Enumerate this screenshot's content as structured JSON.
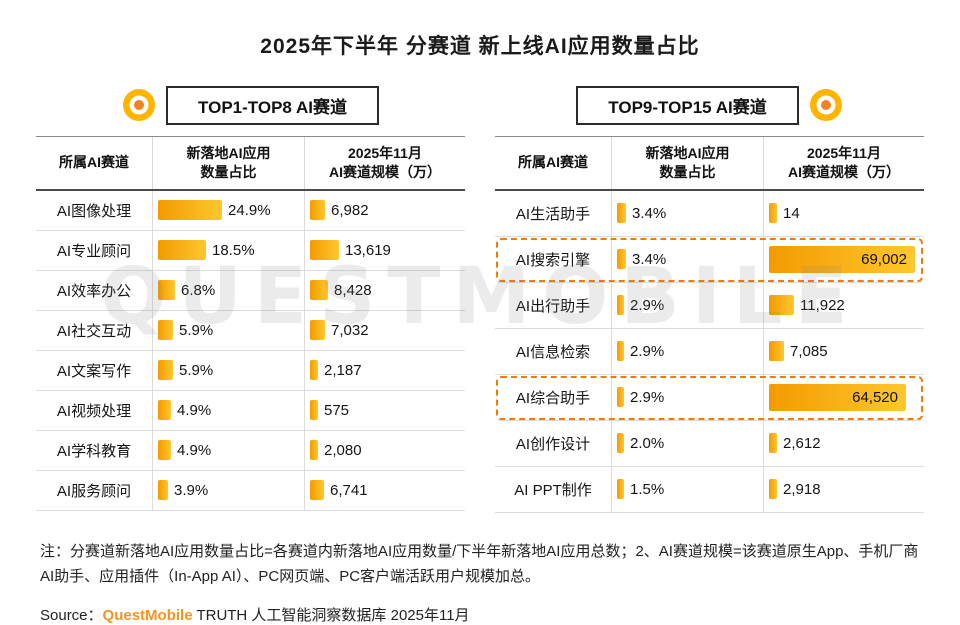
{
  "title": "2025年下半年 分赛道 新上线AI应用数量占比",
  "watermark": "QUESTMOBILE",
  "panels": [
    {
      "header": "TOP1-TOP8 AI赛道",
      "columns": [
        [
          "所属AI赛道"
        ],
        [
          "新落地AI应用",
          "数量占比"
        ],
        [
          "2025年11月",
          "AI赛道规模（万）"
        ]
      ],
      "rows": [
        {
          "track": "AI图像处理",
          "pct": "24.9%",
          "pct_value": 24.9,
          "scale": "6,982",
          "scale_value": 6982,
          "highlight": false
        },
        {
          "track": "AI专业顾问",
          "pct": "18.5%",
          "pct_value": 18.5,
          "scale": "13,619",
          "scale_value": 13619,
          "highlight": false
        },
        {
          "track": "AI效率办公",
          "pct": "6.8%",
          "pct_value": 6.8,
          "scale": "8,428",
          "scale_value": 8428,
          "highlight": false
        },
        {
          "track": "AI社交互动",
          "pct": "5.9%",
          "pct_value": 5.9,
          "scale": "7,032",
          "scale_value": 7032,
          "highlight": false
        },
        {
          "track": "AI文案写作",
          "pct": "5.9%",
          "pct_value": 5.9,
          "scale": "2,187",
          "scale_value": 2187,
          "highlight": false
        },
        {
          "track": "AI视频处理",
          "pct": "4.9%",
          "pct_value": 4.9,
          "scale": "575",
          "scale_value": 575,
          "highlight": false
        },
        {
          "track": "AI学科教育",
          "pct": "4.9%",
          "pct_value": 4.9,
          "scale": "2,080",
          "scale_value": 2080,
          "highlight": false
        },
        {
          "track": "AI服务顾问",
          "pct": "3.9%",
          "pct_value": 3.9,
          "scale": "6,741",
          "scale_value": 6741,
          "highlight": false
        }
      ]
    },
    {
      "header": "TOP9-TOP15 AI赛道",
      "columns": [
        [
          "所属AI赛道"
        ],
        [
          "新落地AI应用",
          "数量占比"
        ],
        [
          "2025年11月",
          "AI赛道规模（万）"
        ]
      ],
      "rows": [
        {
          "track": "AI生活助手",
          "pct": "3.4%",
          "pct_value": 3.4,
          "scale": "14",
          "scale_value": 14,
          "highlight": false
        },
        {
          "track": "AI搜索引擎",
          "pct": "3.4%",
          "pct_value": 3.4,
          "scale": "69,002",
          "scale_value": 69002,
          "highlight": true
        },
        {
          "track": "AI出行助手",
          "pct": "2.9%",
          "pct_value": 2.9,
          "scale": "11,922",
          "scale_value": 11922,
          "highlight": false
        },
        {
          "track": "AI信息检索",
          "pct": "2.9%",
          "pct_value": 2.9,
          "scale": "7,085",
          "scale_value": 7085,
          "highlight": false
        },
        {
          "track": "AI综合助手",
          "pct": "2.9%",
          "pct_value": 2.9,
          "scale": "64,520",
          "scale_value": 64520,
          "highlight": true
        },
        {
          "track": "AI创作设计",
          "pct": "2.0%",
          "pct_value": 2.0,
          "scale": "2,612",
          "scale_value": 2612,
          "highlight": false
        },
        {
          "track": "AI PPT制作",
          "pct": "1.5%",
          "pct_value": 1.5,
          "scale": "2,918",
          "scale_value": 2918,
          "highlight": false
        }
      ]
    }
  ],
  "note": "注：分赛道新落地AI应用数量占比=各赛道内新落地AI应用数量/下半年新落地AI应用总数；2、AI赛道规模=该赛道原生App、手机厂商AI助手、应用插件（In-App AI）、PC网页端、PC客户端活跃用户规模加总。",
  "source": {
    "prefix": "Source：",
    "brand": "QuestMobile",
    "suffix": " TRUTH 人工智能洞察数据库 2025年11月"
  },
  "colors": {
    "bar_gradient_start": "#F29B00",
    "bar_gradient_end": "#FFC72E",
    "highlight_dashed_border": "#F07D00",
    "brand_orange": "#F7941D",
    "ring_icon_yellow": "#FFB400",
    "ring_icon_center": "#F58220"
  },
  "chart_data": [
    {
      "type": "bar",
      "title": "TOP1-TOP8 AI赛道",
      "categories": [
        "AI图像处理",
        "AI专业顾问",
        "AI效率办公",
        "AI社交互动",
        "AI文案写作",
        "AI视频处理",
        "AI学科教育",
        "AI服务顾问"
      ],
      "series": [
        {
          "name": "新落地AI应用数量占比(%)",
          "values": [
            24.9,
            18.5,
            6.8,
            5.9,
            5.9,
            4.9,
            4.9,
            3.9
          ]
        },
        {
          "name": "2025年11月AI赛道规模(万)",
          "values": [
            6982,
            13619,
            8428,
            7032,
            2187,
            575,
            2080,
            6741
          ]
        }
      ],
      "xlabel": "",
      "ylabel": "",
      "legend_position": "table-columns",
      "grid": false
    },
    {
      "type": "bar",
      "title": "TOP9-TOP15 AI赛道",
      "categories": [
        "AI生活助手",
        "AI搜索引擎",
        "AI出行助手",
        "AI信息检索",
        "AI综合助手",
        "AI创作设计",
        "AI PPT制作"
      ],
      "series": [
        {
          "name": "新落地AI应用数量占比(%)",
          "values": [
            3.4,
            3.4,
            2.9,
            2.9,
            2.9,
            2.0,
            1.5
          ]
        },
        {
          "name": "2025年11月AI赛道规模(万)",
          "values": [
            14,
            69002,
            11922,
            7085,
            64520,
            2612,
            2918
          ]
        }
      ],
      "highlighted_categories": [
        "AI搜索引擎",
        "AI综合助手"
      ],
      "xlabel": "",
      "ylabel": "",
      "legend_position": "table-columns",
      "grid": false
    }
  ]
}
